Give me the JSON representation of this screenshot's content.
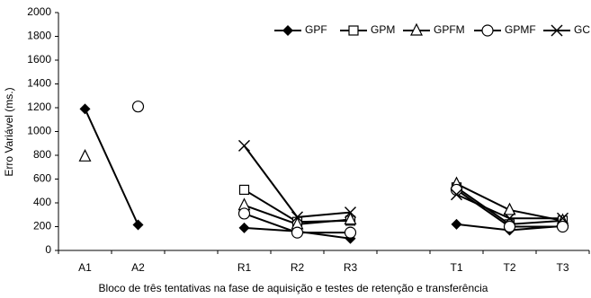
{
  "chart_data": {
    "type": "line",
    "y_label": "Erro Variável (ms.)",
    "x_label": "Bloco de três tentativas na fase de aquisição e testes de retenção e transferência",
    "categories": [
      "A1",
      "A2",
      null,
      "R1",
      "R2",
      "R3",
      null,
      "T1",
      "T2",
      "T3"
    ],
    "series": [
      {
        "name": "GPF",
        "color": "#000000",
        "marker": "diamond",
        "values": [
          1190,
          215,
          null,
          190,
          160,
          100,
          null,
          220,
          170,
          205
        ]
      },
      {
        "name": "GPM",
        "color": "#000000",
        "marker": "square",
        "values": [
          null,
          null,
          null,
          510,
          240,
          250,
          null,
          530,
          220,
          250
        ]
      },
      {
        "name": "GPFM",
        "color": "#000000",
        "marker": "triangle",
        "values": [
          790,
          null,
          null,
          380,
          220,
          260,
          null,
          560,
          340,
          250
        ]
      },
      {
        "name": "GPMF",
        "color": "#000000",
        "marker": "circle",
        "values": [
          null,
          1210,
          null,
          310,
          150,
          150,
          null,
          510,
          200,
          200
        ]
      },
      {
        "name": "GC",
        "color": "#000000",
        "marker": "x",
        "values": [
          null,
          null,
          null,
          880,
          280,
          320,
          null,
          470,
          270,
          270
        ]
      }
    ],
    "ylim": [
      0,
      2000
    ],
    "yticks": [
      0,
      200,
      400,
      600,
      800,
      1000,
      1200,
      1400,
      1600,
      1800,
      2000
    ],
    "legend": "top-right"
  }
}
